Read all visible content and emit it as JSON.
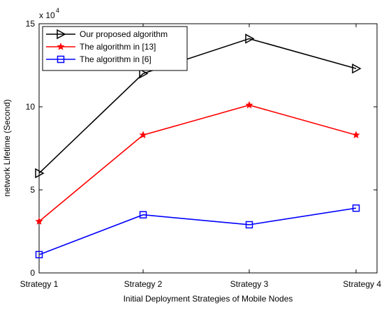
{
  "chart_data": {
    "type": "line",
    "categories": [
      "Strategy 1",
      "Strategy 2",
      "Strategy 3",
      "Strategy 4"
    ],
    "xlabel": "Initial Deployment Strategies of Mobile Nodes",
    "ylabel": "network Lifetime (Second)",
    "ylim": [
      0,
      15
    ],
    "yticks": [
      0,
      5,
      10,
      15
    ],
    "ytick_labels": [
      "0",
      "5",
      "10",
      "15"
    ],
    "y_multiplier_base": "x 10",
    "y_multiplier_exp": "4",
    "grid": false,
    "legend_position": "top-left",
    "series": [
      {
        "name": "Our proposed algorithm",
        "values": [
          6.0,
          12.0,
          14.1,
          12.3
        ],
        "color": "#000000",
        "marker": "triangle-right"
      },
      {
        "name": "The algorithm in [13]",
        "values": [
          3.1,
          8.3,
          10.1,
          8.3
        ],
        "color": "#ff0000",
        "marker": "star"
      },
      {
        "name": "The algorithm in [6]",
        "values": [
          1.1,
          3.5,
          2.9,
          3.9
        ],
        "color": "#0000ff",
        "marker": "square"
      }
    ]
  }
}
